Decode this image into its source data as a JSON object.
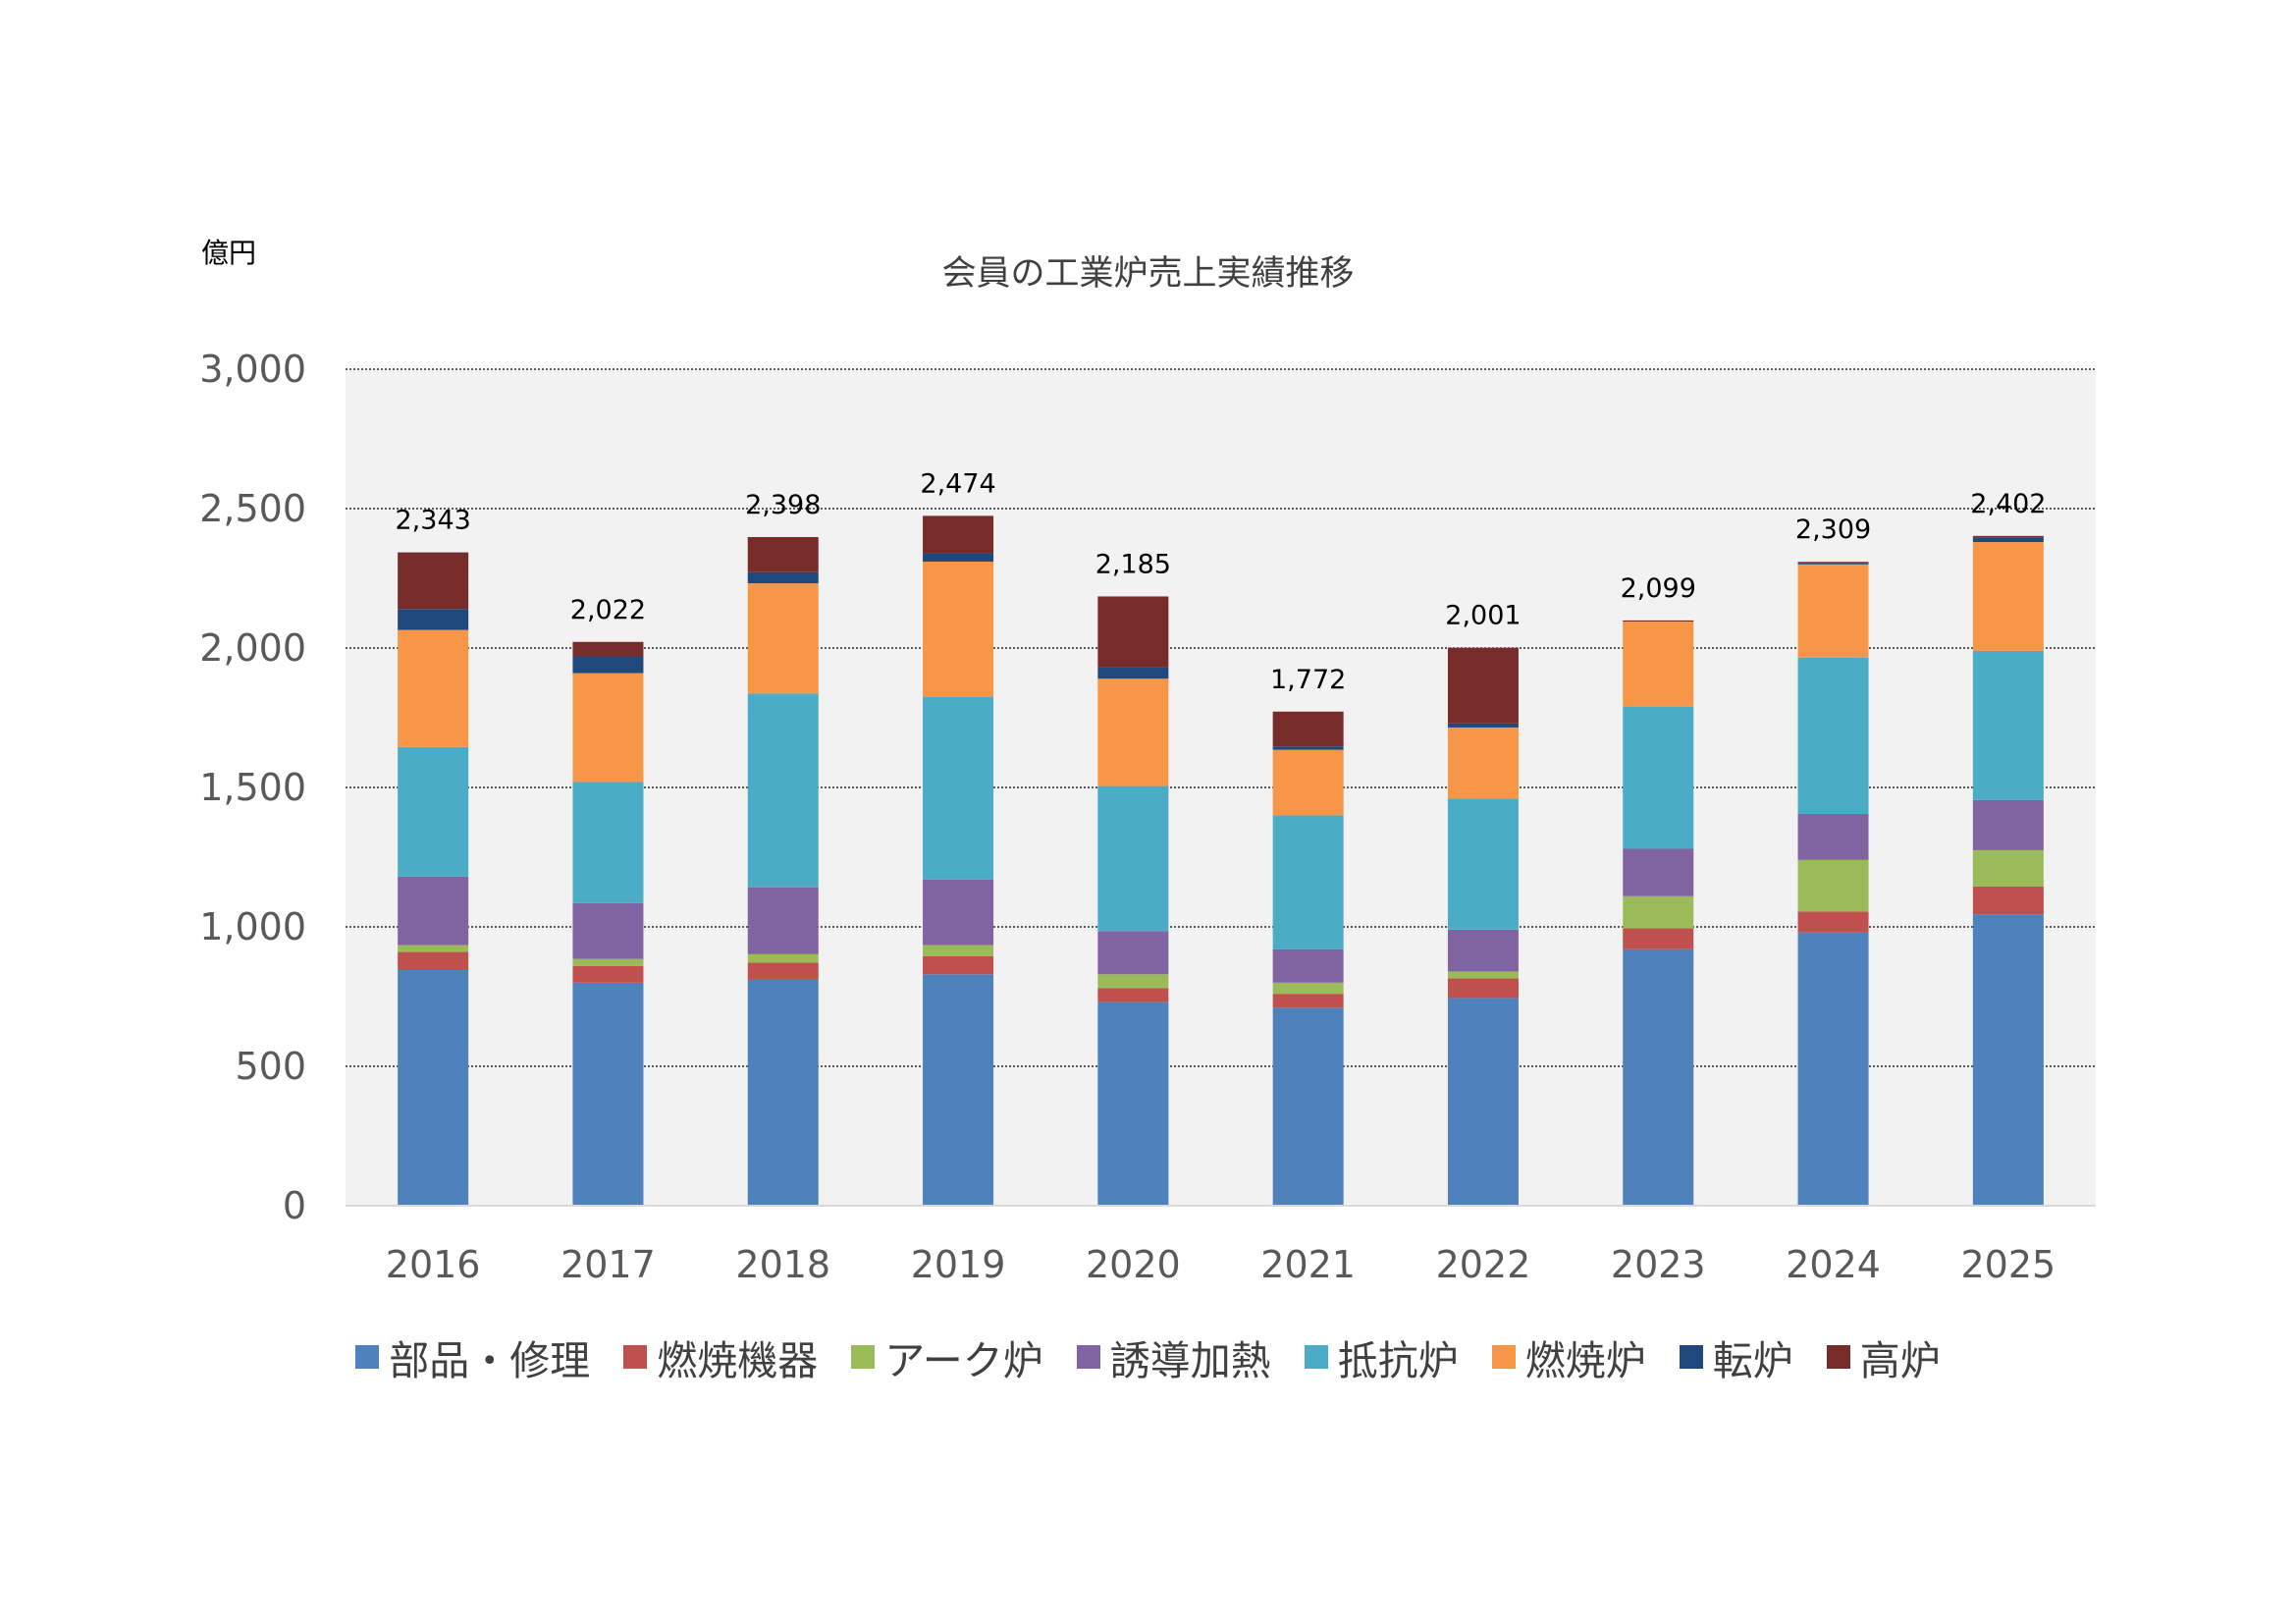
{
  "chart_data": {
    "type": "bar",
    "stacked": true,
    "title": "会員の工業炉売上実績推移",
    "unit_label": "億円",
    "categories": [
      "2016",
      "2017",
      "2018",
      "2019",
      "2020",
      "2021",
      "2022",
      "2023",
      "2024",
      "2025"
    ],
    "totals": [
      "2,343",
      "2,022",
      "2,398",
      "2,474",
      "2,185",
      "1,772",
      "2,001",
      "2,099",
      "2,309",
      "2,402"
    ],
    "ylim": [
      0,
      3000
    ],
    "yticks": [
      0,
      500,
      1000,
      1500,
      2000,
      2500,
      3000
    ],
    "ytick_labels": [
      "0",
      "500",
      "1,000",
      "1,500",
      "2,000",
      "2,500",
      "3,000"
    ],
    "grid": true,
    "legend_position": "bottom",
    "series": [
      {
        "name": "部品・修理",
        "color": "#4F81BD",
        "values": [
          845,
          800,
          810,
          830,
          730,
          710,
          745,
          920,
          980,
          1045
        ]
      },
      {
        "name": "燃焼機器",
        "color": "#C0504D",
        "values": [
          65,
          60,
          62,
          65,
          50,
          50,
          70,
          75,
          75,
          100
        ]
      },
      {
        "name": "アーク炉",
        "color": "#9BBB59",
        "values": [
          25,
          25,
          30,
          40,
          50,
          40,
          25,
          115,
          185,
          130
        ]
      },
      {
        "name": "誘導加熱",
        "color": "#8064A2",
        "values": [
          245,
          200,
          240,
          235,
          155,
          120,
          150,
          170,
          165,
          180
        ]
      },
      {
        "name": "抵抗炉",
        "color": "#4BACC6",
        "values": [
          465,
          435,
          695,
          655,
          520,
          480,
          470,
          510,
          560,
          535
        ]
      },
      {
        "name": "燃焼炉",
        "color": "#F79646",
        "values": [
          420,
          390,
          395,
          485,
          385,
          235,
          255,
          305,
          335,
          390
        ]
      },
      {
        "name": "転炉",
        "color": "#1F497D",
        "values": [
          75,
          60,
          40,
          30,
          40,
          12,
          15,
          0,
          5,
          17
        ]
      },
      {
        "name": "高炉",
        "color": "#772C2A",
        "values": [
          203,
          52,
          126,
          134,
          255,
          125,
          271,
          4,
          4,
          5
        ]
      }
    ]
  }
}
